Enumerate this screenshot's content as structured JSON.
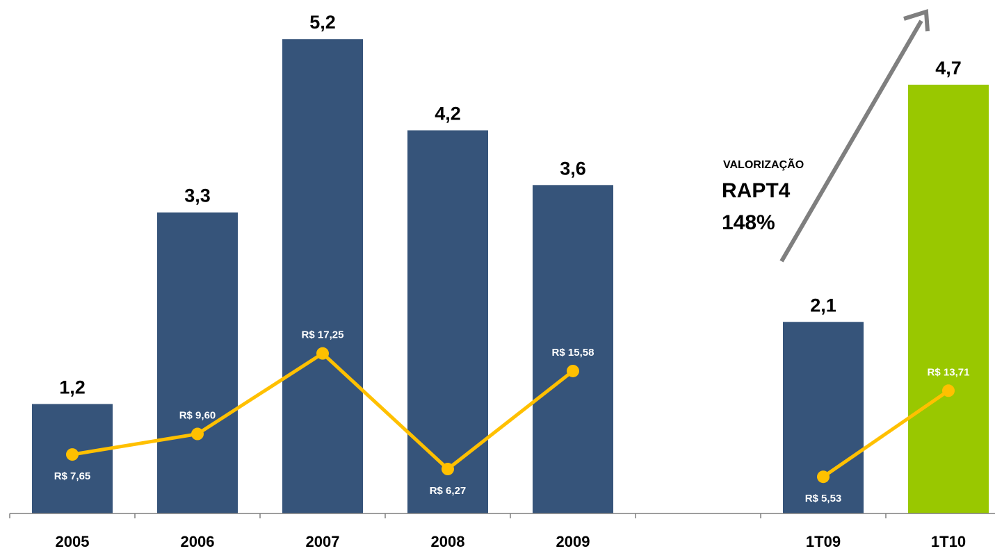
{
  "chart_data": {
    "type": "bar",
    "categories": [
      "2005",
      "2006",
      "2007",
      "2008",
      "2009",
      "",
      "1T09",
      "1T10"
    ],
    "series": [
      {
        "values": [
          1.2,
          3.3,
          5.2,
          4.2,
          3.6,
          null,
          2.1,
          4.7
        ],
        "value_labels": [
          "1,2",
          "3,3",
          "5,2",
          "4,2",
          "3,6",
          "",
          "2,1",
          "4,7"
        ],
        "colors": [
          "#36547A",
          "#36547A",
          "#36547A",
          "#36547A",
          "#36547A",
          "",
          "#36547A",
          "#99C800"
        ]
      },
      {
        "type": "line",
        "values": [
          7.65,
          9.6,
          17.25,
          6.27,
          15.58,
          null,
          5.53,
          13.71
        ],
        "value_labels": [
          "R$ 7,65",
          "R$ 9,60",
          "R$ 17,25",
          "R$ 6,27",
          "R$ 15,58",
          "",
          "R$ 5,53",
          "R$ 13,71"
        ],
        "color": "#FFC000"
      }
    ],
    "ylim": [
      0,
      5.5
    ],
    "line_ylim": [
      0,
      30
    ],
    "grid": false,
    "annotation": {
      "line1": "VALORIZAÇÃO",
      "line2": "RAPT4",
      "line3": "148%",
      "arrow_color": "#7F7F7F"
    }
  }
}
